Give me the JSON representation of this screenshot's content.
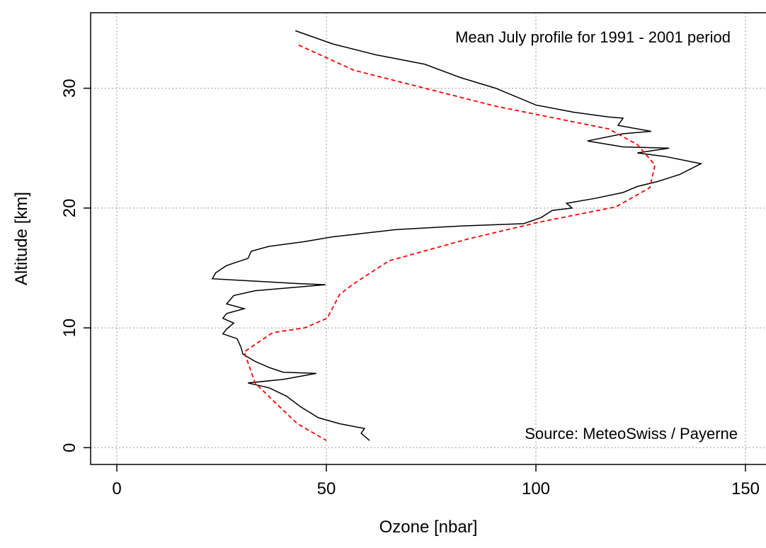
{
  "chart_data": {
    "type": "line",
    "xlabel": "Ozone [nbar]",
    "ylabel": "Altitude [km]",
    "annotations": [
      "Mean July profile for 1991 - 2001 period",
      "Source: MeteoSwiss / Payerne"
    ],
    "annotation_colors": [
      "#ff0000",
      "#000000"
    ],
    "xlim": [
      -6.25,
      154.9
    ],
    "ylim": [
      -1.4,
      36.3
    ],
    "xticks": [
      0,
      50,
      100,
      150
    ],
    "yticks": [
      0,
      10,
      20,
      30
    ],
    "grid": true,
    "series": [
      {
        "color": "#000000",
        "dash": false,
        "x": [
          42.6,
          51.5,
          61.7,
          73.5,
          81.9,
          90.4,
          100,
          109,
          117.4,
          120.8,
          119.6,
          127.5,
          120.8,
          112.3,
          120.8,
          131.8,
          124.2,
          130.9,
          139.4,
          134.3,
          128.9,
          124.2,
          120.8,
          114,
          107.3,
          108.6,
          103.9,
          101.2,
          97.1,
          81.9,
          66.7,
          56.6,
          51.5,
          44.8,
          36.3,
          32.1,
          31.3,
          26.2,
          23.6,
          22.8,
          33.0,
          43.1,
          49.8,
          43.1,
          33.0,
          27.9,
          26.2,
          30.4,
          26.2,
          25.3,
          27.9,
          26.2,
          25.3,
          28.7,
          29.6,
          30.1,
          33.0,
          36.3,
          39.7,
          47.6,
          39.7,
          31.3,
          36.3,
          40.5,
          43.9,
          48.1,
          53.2,
          59.1,
          58.3,
          60.3
        ],
        "values": [
          34.8,
          33.7,
          32.8,
          32.0,
          30.9,
          30.0,
          28.6,
          28.0,
          27.6,
          27.5,
          26.9,
          26.4,
          26.2,
          25.6,
          25.1,
          25.0,
          24.6,
          24.3,
          23.7,
          22.8,
          22.2,
          21.8,
          21.3,
          20.8,
          20.4,
          20.0,
          19.8,
          19.2,
          18.7,
          18.5,
          18.2,
          17.8,
          17.6,
          17.2,
          16.8,
          16.4,
          15.8,
          15.2,
          14.6,
          14.1,
          13.9,
          13.7,
          13.6,
          13.4,
          13.1,
          12.7,
          12.0,
          11.6,
          11.2,
          10.8,
          10.4,
          9.9,
          9.5,
          9.1,
          8.4,
          7.8,
          7.2,
          6.7,
          6.3,
          6.2,
          5.7,
          5.4,
          5.0,
          4.3,
          3.4,
          2.5,
          2.0,
          1.6,
          1.2,
          0.6
        ]
      },
      {
        "color": "#ff0000",
        "dash": true,
        "x": [
          43.4,
          56.6,
          73.5,
          90.4,
          117.4,
          124.2,
          128.4,
          127.2,
          119.1,
          100.5,
          83.6,
          65.0,
          56.6,
          53.2,
          50.2,
          44.8,
          37.2,
          30.4,
          33.0,
          38.0,
          43.1,
          50.0
        ],
        "values": [
          33.6,
          31.5,
          30.0,
          28.5,
          26.6,
          25.3,
          23.6,
          21.7,
          20.1,
          18.8,
          17.4,
          15.6,
          13.7,
          12.8,
          10.8,
          10.0,
          9.6,
          8.0,
          5.4,
          3.7,
          2.0,
          0.6
        ]
      }
    ]
  }
}
